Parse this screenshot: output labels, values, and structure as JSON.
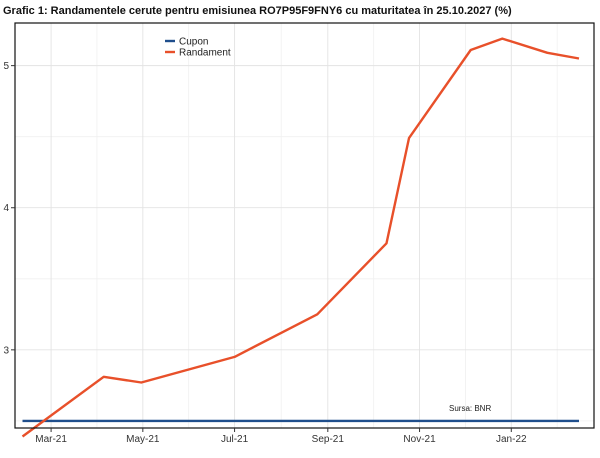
{
  "chart_data": {
    "type": "line",
    "title": "Grafic 1: Randamentele cerute pentru emisiunea RO7P95F9FNY6 cu maturitatea în 25.10.2027 (%)",
    "source": "Sursa: BNR",
    "legend_position": "top-left",
    "grid": true,
    "xlim": [
      "2021-02-05",
      "2022-02-25"
    ],
    "ylim": [
      2.45,
      5.3
    ],
    "x_ticks": [
      {
        "date": "2021-03-01",
        "label": "Mar-21"
      },
      {
        "date": "2021-05-01",
        "label": "May-21"
      },
      {
        "date": "2021-07-01",
        "label": "Jul-21"
      },
      {
        "date": "2021-09-01",
        "label": "Sep-21"
      },
      {
        "date": "2021-11-01",
        "label": "Nov-21"
      },
      {
        "date": "2022-01-01",
        "label": "Jan-22"
      }
    ],
    "y_ticks": [
      {
        "value": 3,
        "label": "3"
      },
      {
        "value": 4,
        "label": "4"
      },
      {
        "value": 5,
        "label": "5"
      }
    ],
    "series": [
      {
        "name": "Cupon",
        "color": "#1f4e8c",
        "points": [
          [
            "2021-02-10",
            2.5
          ],
          [
            "2022-02-15",
            2.5
          ]
        ]
      },
      {
        "name": "Randament",
        "color": "#e8502a",
        "points": [
          [
            "2021-02-10",
            2.39
          ],
          [
            "2021-04-05",
            2.81
          ],
          [
            "2021-04-30",
            2.77
          ],
          [
            "2021-07-01",
            2.95
          ],
          [
            "2021-08-25",
            3.25
          ],
          [
            "2021-10-10",
            3.75
          ],
          [
            "2021-10-25",
            4.49
          ],
          [
            "2021-12-05",
            5.11
          ],
          [
            "2021-12-26",
            5.19
          ],
          [
            "2022-01-25",
            5.09
          ],
          [
            "2022-02-15",
            5.05
          ]
        ]
      }
    ]
  }
}
